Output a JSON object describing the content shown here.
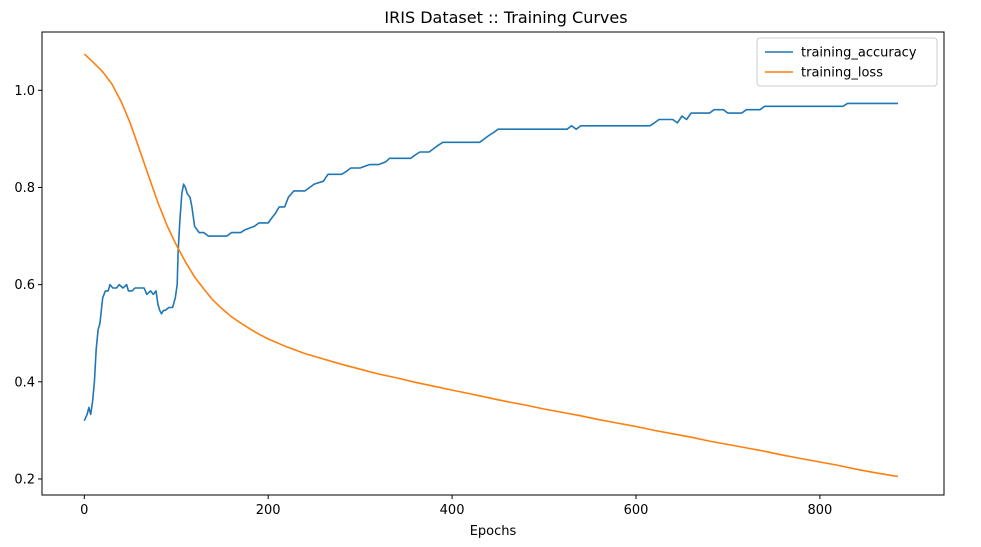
{
  "chart_data": {
    "type": "line",
    "title": "IRIS Dataset :: Training Curves",
    "xlabel": "Epochs",
    "ylabel": "",
    "xlim": [
      -46,
      935
    ],
    "ylim": [
      0.167,
      1.12
    ],
    "x_ticks": [
      0,
      200,
      400,
      600,
      800
    ],
    "x_tick_labels": [
      "0",
      "200",
      "400",
      "600",
      "800"
    ],
    "y_ticks": [
      0.2,
      0.4,
      0.6,
      0.8,
      1.0
    ],
    "y_tick_labels": [
      "0.2",
      "0.4",
      "0.6",
      "0.8",
      "1.0"
    ],
    "grid": false,
    "legend_position": "top-right",
    "series": [
      {
        "name": "training_accuracy",
        "color": "#1f77b4",
        "points": [
          [
            0,
            0.32
          ],
          [
            3,
            0.333
          ],
          [
            5,
            0.347
          ],
          [
            7,
            0.333
          ],
          [
            9,
            0.36
          ],
          [
            11,
            0.4
          ],
          [
            13,
            0.467
          ],
          [
            15,
            0.507
          ],
          [
            17,
            0.52
          ],
          [
            20,
            0.573
          ],
          [
            23,
            0.587
          ],
          [
            26,
            0.587
          ],
          [
            28,
            0.6
          ],
          [
            31,
            0.593
          ],
          [
            35,
            0.593
          ],
          [
            38,
            0.6
          ],
          [
            42,
            0.593
          ],
          [
            46,
            0.6
          ],
          [
            48,
            0.587
          ],
          [
            52,
            0.587
          ],
          [
            55,
            0.593
          ],
          [
            60,
            0.593
          ],
          [
            65,
            0.593
          ],
          [
            68,
            0.58
          ],
          [
            72,
            0.587
          ],
          [
            75,
            0.58
          ],
          [
            78,
            0.587
          ],
          [
            80,
            0.56
          ],
          [
            82,
            0.547
          ],
          [
            84,
            0.54
          ],
          [
            86,
            0.547
          ],
          [
            88,
            0.547
          ],
          [
            92,
            0.553
          ],
          [
            96,
            0.553
          ],
          [
            99,
            0.573
          ],
          [
            101,
            0.6
          ],
          [
            102,
            0.667
          ],
          [
            104,
            0.733
          ],
          [
            106,
            0.787
          ],
          [
            108,
            0.807
          ],
          [
            110,
            0.8
          ],
          [
            112,
            0.787
          ],
          [
            115,
            0.78
          ],
          [
            117,
            0.76
          ],
          [
            120,
            0.72
          ],
          [
            125,
            0.707
          ],
          [
            130,
            0.707
          ],
          [
            135,
            0.7
          ],
          [
            145,
            0.7
          ],
          [
            155,
            0.7
          ],
          [
            160,
            0.707
          ],
          [
            170,
            0.707
          ],
          [
            175,
            0.713
          ],
          [
            185,
            0.72
          ],
          [
            190,
            0.727
          ],
          [
            200,
            0.727
          ],
          [
            205,
            0.74
          ],
          [
            208,
            0.747
          ],
          [
            212,
            0.76
          ],
          [
            218,
            0.76
          ],
          [
            222,
            0.78
          ],
          [
            228,
            0.793
          ],
          [
            240,
            0.793
          ],
          [
            245,
            0.8
          ],
          [
            250,
            0.807
          ],
          [
            260,
            0.813
          ],
          [
            265,
            0.827
          ],
          [
            270,
            0.827
          ],
          [
            280,
            0.827
          ],
          [
            285,
            0.833
          ],
          [
            290,
            0.84
          ],
          [
            300,
            0.84
          ],
          [
            310,
            0.847
          ],
          [
            320,
            0.847
          ],
          [
            328,
            0.853
          ],
          [
            332,
            0.86
          ],
          [
            340,
            0.86
          ],
          [
            355,
            0.86
          ],
          [
            360,
            0.867
          ],
          [
            365,
            0.873
          ],
          [
            375,
            0.873
          ],
          [
            380,
            0.88
          ],
          [
            385,
            0.887
          ],
          [
            390,
            0.893
          ],
          [
            400,
            0.893
          ],
          [
            420,
            0.893
          ],
          [
            430,
            0.893
          ],
          [
            435,
            0.9
          ],
          [
            440,
            0.907
          ],
          [
            445,
            0.913
          ],
          [
            450,
            0.92
          ],
          [
            470,
            0.92
          ],
          [
            500,
            0.92
          ],
          [
            525,
            0.92
          ],
          [
            530,
            0.927
          ],
          [
            535,
            0.92
          ],
          [
            540,
            0.927
          ],
          [
            560,
            0.927
          ],
          [
            580,
            0.927
          ],
          [
            600,
            0.927
          ],
          [
            615,
            0.927
          ],
          [
            620,
            0.933
          ],
          [
            625,
            0.94
          ],
          [
            640,
            0.94
          ],
          [
            645,
            0.933
          ],
          [
            650,
            0.947
          ],
          [
            655,
            0.94
          ],
          [
            660,
            0.953
          ],
          [
            670,
            0.953
          ],
          [
            680,
            0.953
          ],
          [
            685,
            0.96
          ],
          [
            695,
            0.96
          ],
          [
            700,
            0.953
          ],
          [
            715,
            0.953
          ],
          [
            720,
            0.96
          ],
          [
            735,
            0.96
          ],
          [
            740,
            0.967
          ],
          [
            750,
            0.967
          ],
          [
            780,
            0.967
          ],
          [
            810,
            0.967
          ],
          [
            825,
            0.967
          ],
          [
            830,
            0.973
          ],
          [
            860,
            0.973
          ],
          [
            885,
            0.973
          ]
        ]
      },
      {
        "name": "training_loss",
        "color": "#ff7f0e",
        "points": [
          [
            0,
            1.075
          ],
          [
            10,
            1.057
          ],
          [
            20,
            1.038
          ],
          [
            30,
            1.013
          ],
          [
            40,
            0.977
          ],
          [
            50,
            0.932
          ],
          [
            60,
            0.878
          ],
          [
            70,
            0.823
          ],
          [
            80,
            0.769
          ],
          [
            90,
            0.722
          ],
          [
            100,
            0.682
          ],
          [
            110,
            0.647
          ],
          [
            120,
            0.616
          ],
          [
            130,
            0.591
          ],
          [
            140,
            0.568
          ],
          [
            150,
            0.55
          ],
          [
            160,
            0.534
          ],
          [
            170,
            0.521
          ],
          [
            180,
            0.509
          ],
          [
            190,
            0.498
          ],
          [
            200,
            0.488
          ],
          [
            220,
            0.472
          ],
          [
            240,
            0.458
          ],
          [
            260,
            0.447
          ],
          [
            280,
            0.436
          ],
          [
            300,
            0.426
          ],
          [
            320,
            0.416
          ],
          [
            340,
            0.408
          ],
          [
            360,
            0.399
          ],
          [
            380,
            0.391
          ],
          [
            400,
            0.383
          ],
          [
            420,
            0.375
          ],
          [
            440,
            0.367
          ],
          [
            460,
            0.359
          ],
          [
            480,
            0.352
          ],
          [
            500,
            0.344
          ],
          [
            520,
            0.337
          ],
          [
            540,
            0.33
          ],
          [
            560,
            0.322
          ],
          [
            580,
            0.315
          ],
          [
            600,
            0.308
          ],
          [
            620,
            0.3
          ],
          [
            640,
            0.293
          ],
          [
            660,
            0.286
          ],
          [
            680,
            0.278
          ],
          [
            700,
            0.271
          ],
          [
            720,
            0.264
          ],
          [
            740,
            0.257
          ],
          [
            760,
            0.249
          ],
          [
            780,
            0.242
          ],
          [
            800,
            0.235
          ],
          [
            820,
            0.228
          ],
          [
            840,
            0.22
          ],
          [
            860,
            0.213
          ],
          [
            885,
            0.205
          ]
        ]
      }
    ]
  }
}
